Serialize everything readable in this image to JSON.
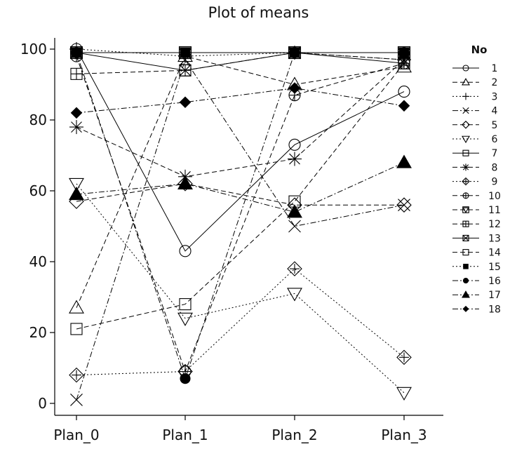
{
  "chart_data": {
    "type": "line",
    "title": "Plot of means",
    "xlabel": "",
    "ylabel": "",
    "categories": [
      "Plan_0",
      "Plan_1",
      "Plan_2",
      "Plan_3"
    ],
    "ylim": [
      0,
      100
    ],
    "yticks": [
      0,
      20,
      40,
      60,
      80,
      100
    ],
    "grid": false,
    "legend": {
      "title": "No",
      "placement": "right"
    },
    "series": [
      {
        "name": "1",
        "marker": "circle",
        "dash": "solid",
        "values": [
          100,
          43,
          73,
          88
        ]
      },
      {
        "name": "2",
        "marker": "triangle-up",
        "dash": "dash",
        "values": [
          27,
          98,
          90,
          95
        ]
      },
      {
        "name": "3",
        "marker": "plus",
        "dash": "dot",
        "values": [
          100,
          98,
          99,
          97
        ]
      },
      {
        "name": "4",
        "marker": "x",
        "dash": "dashdot",
        "values": [
          1,
          97,
          50,
          56
        ]
      },
      {
        "name": "5",
        "marker": "diamond",
        "dash": "dash",
        "values": [
          57,
          62,
          56,
          56
        ]
      },
      {
        "name": "6",
        "marker": "triangle-down",
        "dash": "dot",
        "values": [
          62,
          24,
          31,
          3
        ]
      },
      {
        "name": "7",
        "marker": "square-line",
        "dash": "solid",
        "values": [
          99,
          99,
          99,
          99
        ]
      },
      {
        "name": "8",
        "marker": "star",
        "dash": "dash",
        "values": [
          78,
          64,
          69,
          97
        ]
      },
      {
        "name": "9",
        "marker": "diamond-plus",
        "dash": "dot",
        "values": [
          8,
          9,
          38,
          13
        ]
      },
      {
        "name": "10",
        "marker": "circle-plus",
        "dash": "dash",
        "values": [
          98,
          9,
          87,
          96
        ]
      },
      {
        "name": "11",
        "marker": "triangle-box",
        "dash": "dash",
        "values": [
          99,
          99,
          99,
          99
        ]
      },
      {
        "name": "12",
        "marker": "square-plus",
        "dash": "dash",
        "values": [
          93,
          94,
          99,
          97
        ]
      },
      {
        "name": "13",
        "marker": "square-x",
        "dash": "solid",
        "values": [
          99,
          94,
          99,
          96
        ]
      },
      {
        "name": "14",
        "marker": "square",
        "dash": "dash",
        "values": [
          21,
          28,
          57,
          96
        ]
      },
      {
        "name": "15",
        "marker": "square-filled",
        "dash": "dot",
        "values": [
          99,
          99,
          99,
          99
        ]
      },
      {
        "name": "16",
        "marker": "circle-filled",
        "dash": "dashdot",
        "values": [
          99,
          7,
          99,
          99
        ]
      },
      {
        "name": "17",
        "marker": "triangle-filled",
        "dash": "dashdot",
        "values": [
          59,
          62,
          54,
          68
        ]
      },
      {
        "name": "18",
        "marker": "diamond-filled",
        "dash": "dashdot",
        "values": [
          82,
          85,
          89,
          84
        ]
      }
    ]
  }
}
